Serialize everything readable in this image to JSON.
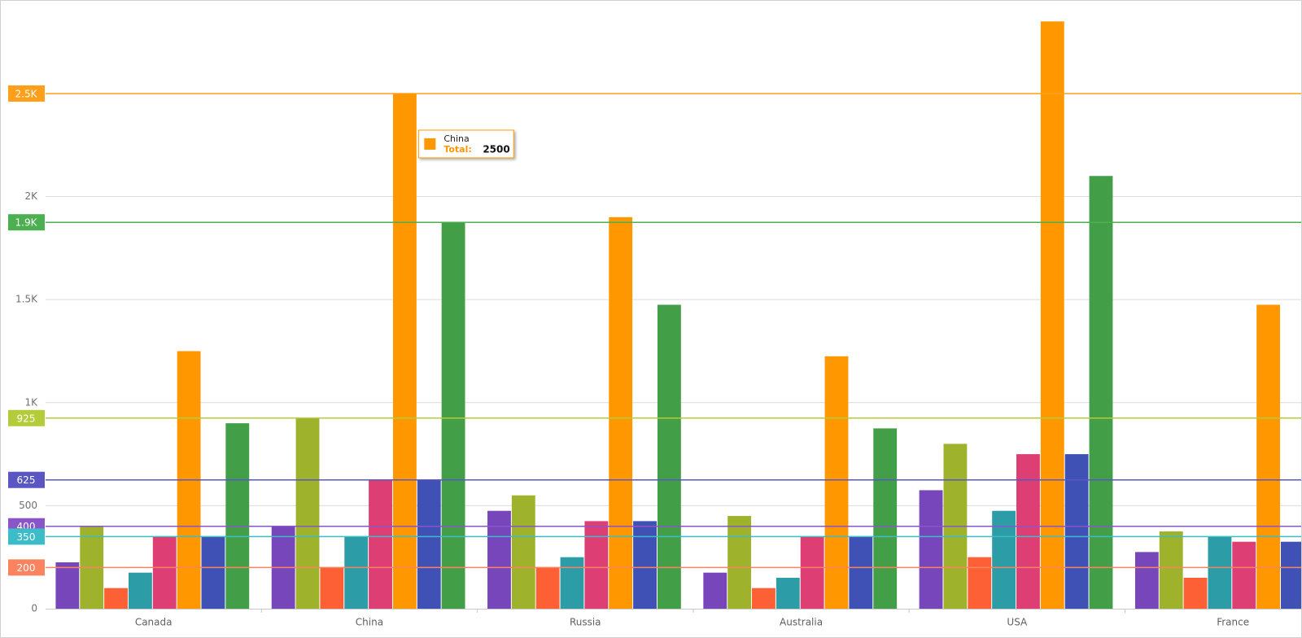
{
  "chart_data": {
    "type": "bar",
    "categories": [
      "Canada",
      "China",
      "Russia",
      "Australia",
      "USA",
      "France"
    ],
    "series": [
      {
        "color": "#7846bb",
        "values": [
          225,
          400,
          475,
          175,
          575,
          275
        ]
      },
      {
        "color": "#9eb32b",
        "values": [
          400,
          925,
          550,
          450,
          800,
          375
        ]
      },
      {
        "color": "#fc6034",
        "values": [
          100,
          200,
          200,
          100,
          250,
          150
        ]
      },
      {
        "color": "#2c9ca6",
        "values": [
          175,
          350,
          250,
          150,
          475,
          350
        ]
      },
      {
        "color": "#dd3e74",
        "values": [
          350,
          625,
          425,
          350,
          750,
          325
        ]
      },
      {
        "color": "#ff9800",
        "values": [
          1250,
          2500,
          1900,
          1225,
          2850,
          1475
        ]
      },
      {
        "color": "#3f51b5",
        "values": [
          350,
          625,
          425,
          350,
          750,
          325
        ]
      },
      {
        "color": "#439e48",
        "values": [
          900,
          1875,
          1475,
          875,
          2100,
          null
        ]
      }
    ],
    "ylim": [
      0,
      2950
    ],
    "yticks": [
      0,
      500,
      {
        "value": 1000,
        "label": "1K"
      },
      {
        "value": 1500,
        "label": "1.5K"
      },
      {
        "value": 2000,
        "label": "2K"
      },
      {
        "value": 2500,
        "label": "2.5K"
      }
    ],
    "grid": true,
    "constant_lines": [
      {
        "value": 2500,
        "label": "2.5K",
        "color": "#ff9f1a"
      },
      {
        "value": 1875,
        "label": "1.9K",
        "color": "#4caf50"
      },
      {
        "value": 925,
        "label": "925",
        "color": "#b4cc3a"
      },
      {
        "value": 625,
        "label": "625",
        "color": "#5a57c2"
      },
      {
        "value": 400,
        "label": "400",
        "color": "#8a55c8"
      },
      {
        "value": 350,
        "label": "350",
        "color": "#3bbcc8"
      },
      {
        "value": 200,
        "label": "200",
        "color": "#fc8360"
      }
    ],
    "tooltip": {
      "category": "China",
      "label": "Total:",
      "value": 2500
    }
  }
}
